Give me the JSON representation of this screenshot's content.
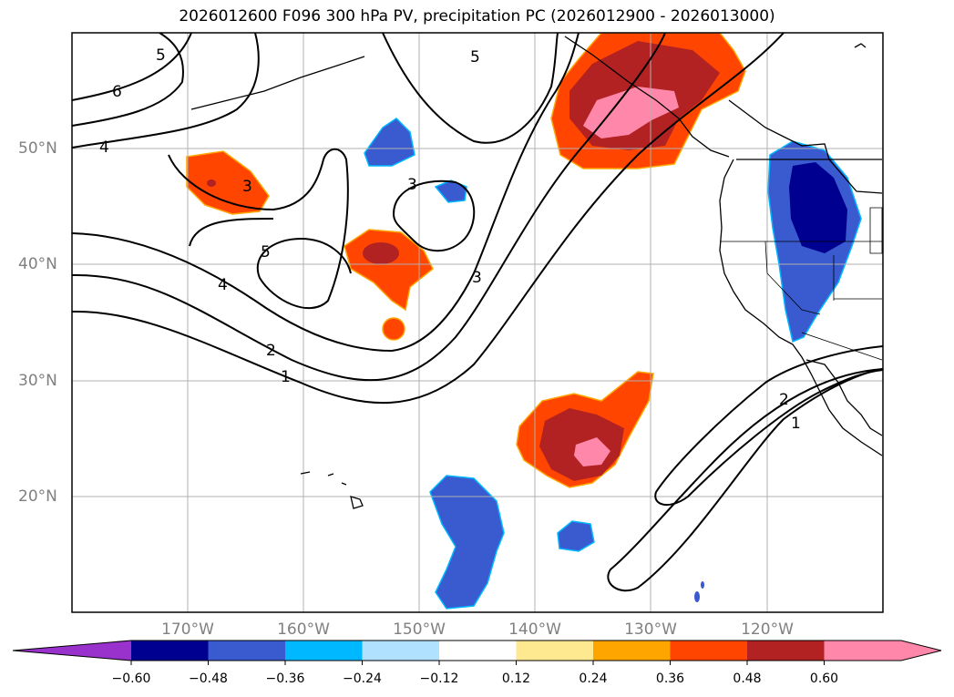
{
  "title": "2026012600 F096 300 hPa PV, precipitation PC (2026012900 - 2026013000)",
  "lat_labels": [
    "50°N",
    "40°N",
    "30°N",
    "20°N"
  ],
  "lon_labels": [
    "170°W",
    "160°W",
    "150°W",
    "140°W",
    "130°W",
    "120°W"
  ],
  "contour_labels": [
    "5",
    "6",
    "4",
    "5",
    "3",
    "3",
    "5",
    "4",
    "3",
    "2",
    "1",
    "2",
    "1"
  ],
  "colorbar": {
    "ticks": [
      "−0.60",
      "−0.48",
      "−0.36",
      "−0.24",
      "−0.12",
      "0.12",
      "0.24",
      "0.36",
      "0.48",
      "0.60"
    ],
    "colors": [
      "#9932cc",
      "#000090",
      "#3a5ad0",
      "#00b8ff",
      "#b0e2ff",
      "#ffffff",
      "#ffe990",
      "#ffa500",
      "#ff4500",
      "#b22222",
      "#ff88aa",
      "#ff88aa"
    ],
    "extend": "both"
  },
  "map": {
    "extent": {
      "lon": [
        -180,
        -110
      ],
      "lat": [
        10,
        60
      ]
    },
    "gridlines": true
  }
}
